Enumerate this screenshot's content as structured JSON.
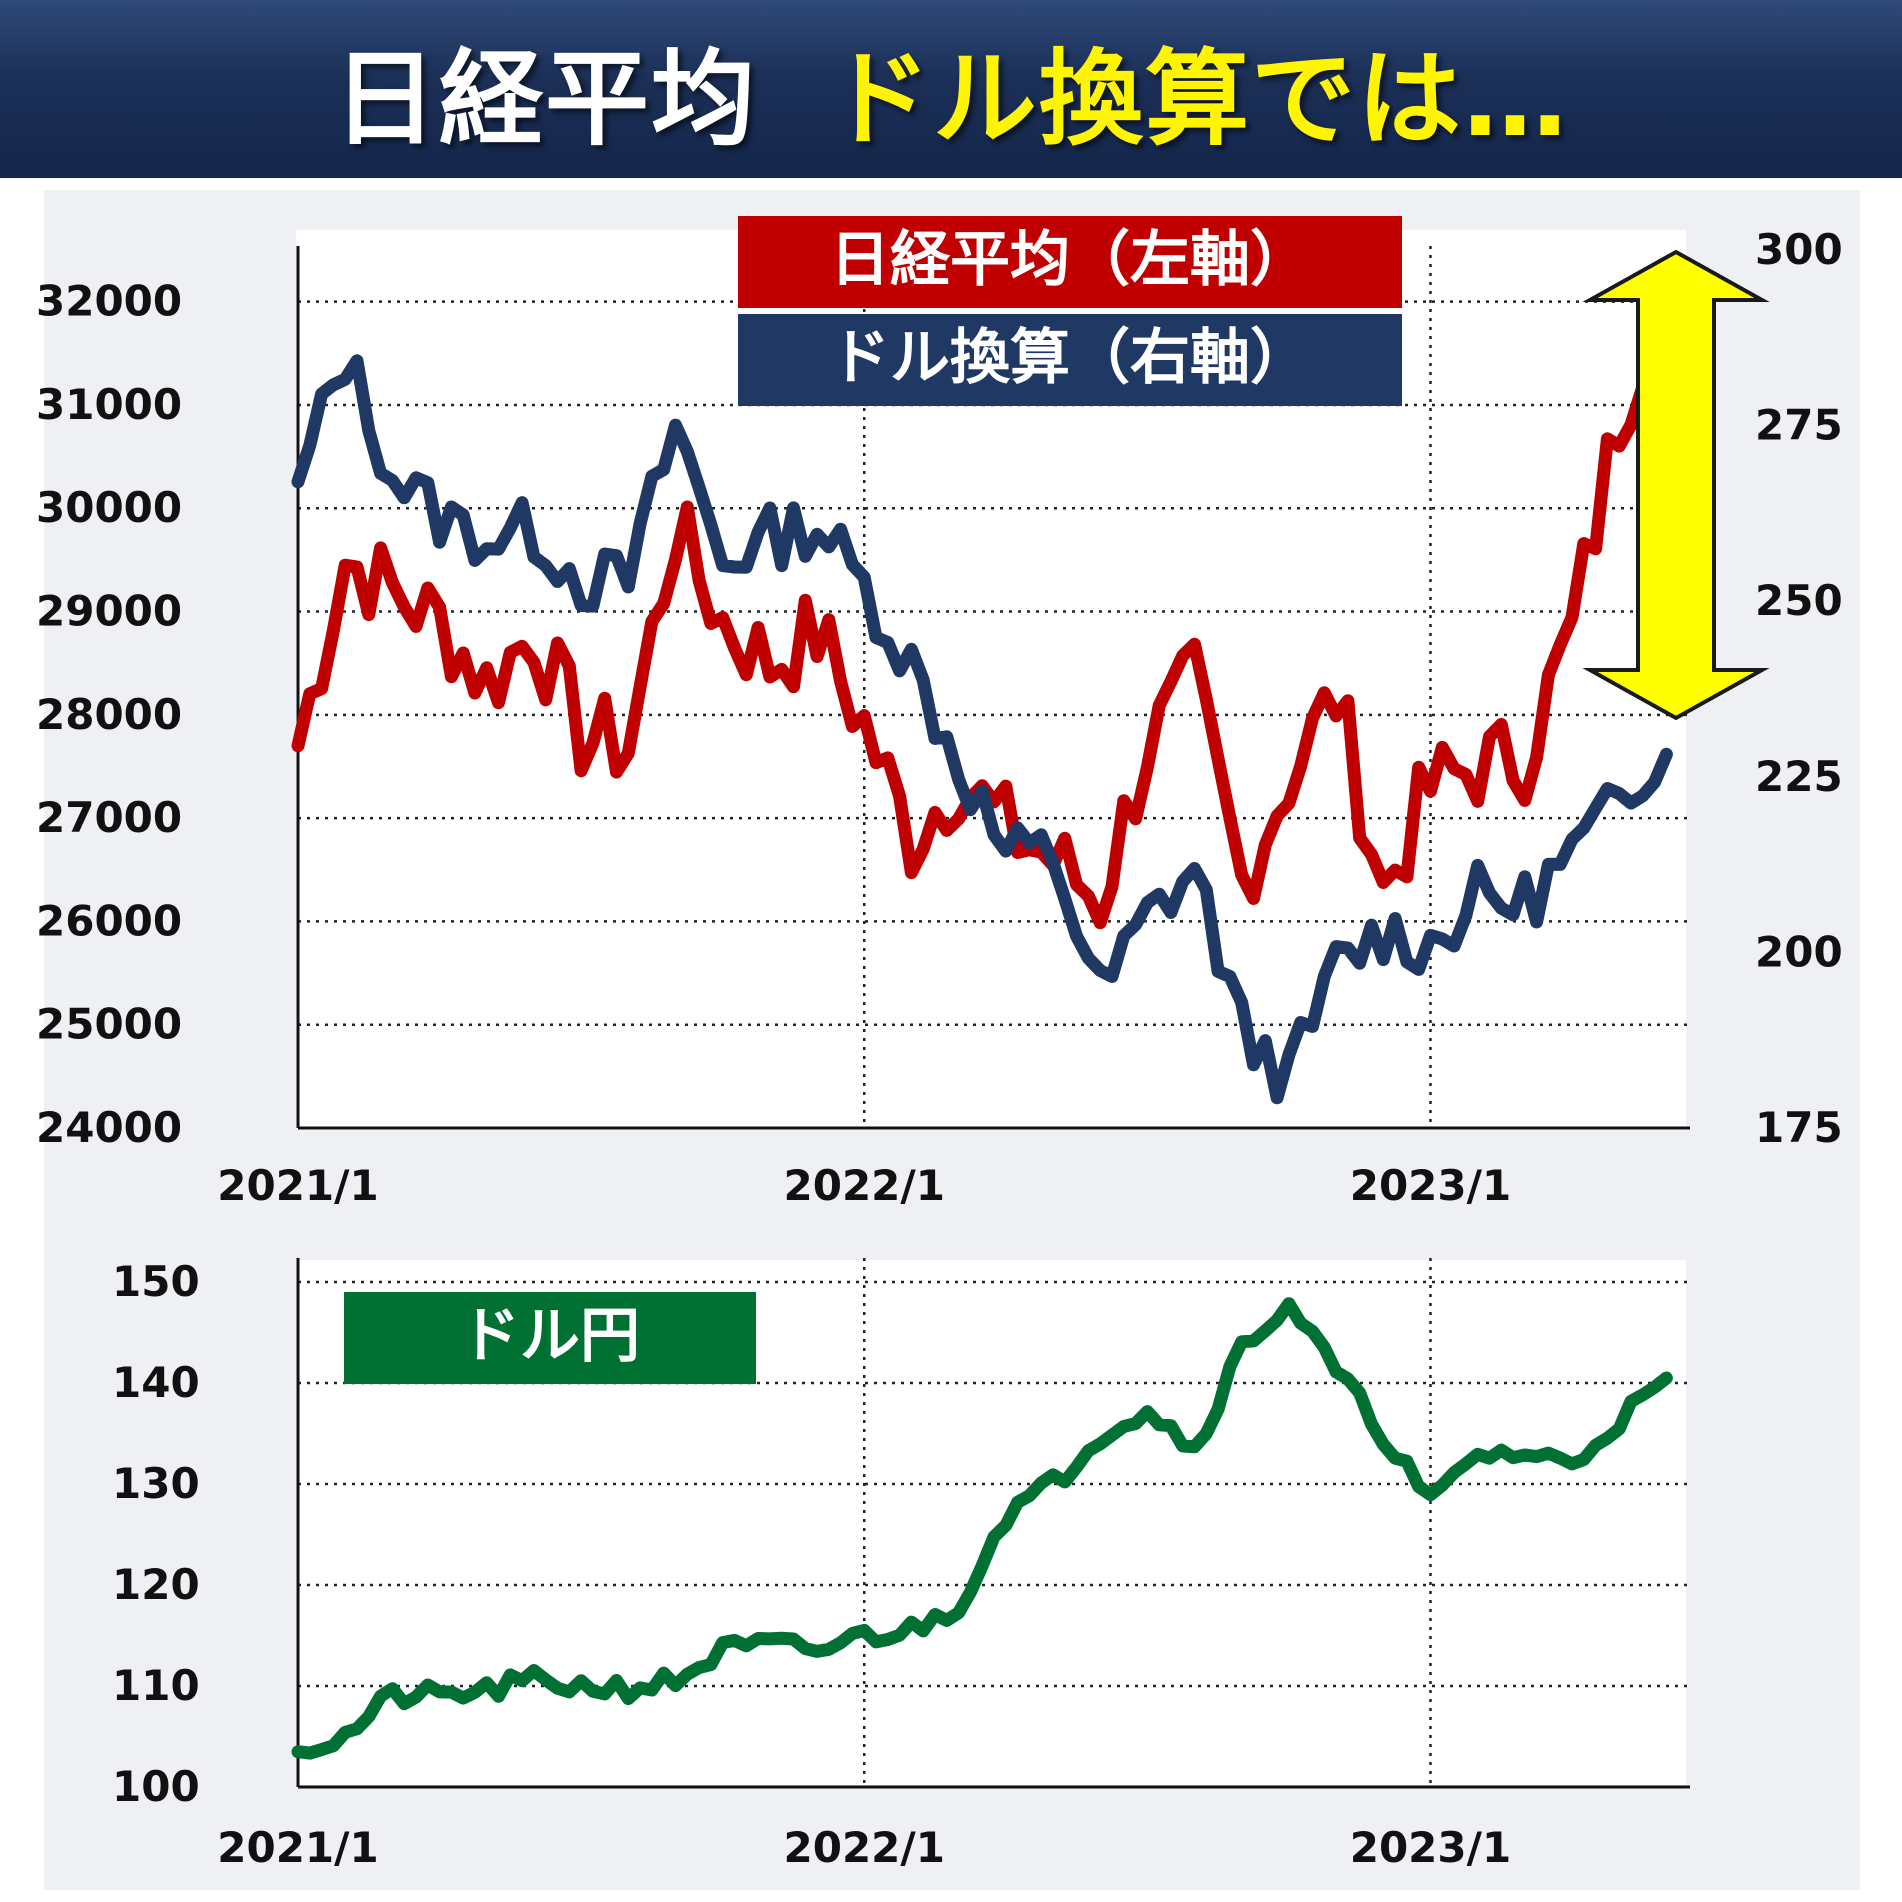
{
  "banner": {
    "title_white": "日経平均",
    "title_yellow": "ドル換算では…"
  },
  "chart_data": [
    {
      "type": "line",
      "title": "",
      "x_ticks": [
        "2021/1",
        "2022/1",
        "2023/1"
      ],
      "x_range": [
        "2021-01",
        "2023-06"
      ],
      "y_left": {
        "range": [
          24000,
          32500
        ],
        "ticks": [
          24000,
          25000,
          26000,
          27000,
          28000,
          29000,
          30000,
          31000,
          32000
        ]
      },
      "y_right": {
        "range": [
          175,
          300
        ],
        "ticks": [
          175,
          200,
          225,
          250,
          275,
          300
        ]
      },
      "grid": true,
      "annotation": "yellow double-headed arrow spanning the gap between the two series on the right",
      "series": [
        {
          "name": "日経平均",
          "legend_note": "（左軸）",
          "axis": "left",
          "color": "#c00000",
          "x": [
            "2021-01",
            "2021-02",
            "2021-03",
            "2021-04",
            "2021-05",
            "2021-06",
            "2021-07",
            "2021-08",
            "2021-09",
            "2021-10",
            "2021-11",
            "2021-12",
            "2022-01",
            "2022-02",
            "2022-03",
            "2022-04",
            "2022-05",
            "2022-06",
            "2022-07",
            "2022-08",
            "2022-09",
            "2022-10",
            "2022-11",
            "2022-12",
            "2023-01",
            "2023-02",
            "2023-03",
            "2023-04",
            "2023-05",
            "2023-06"
          ],
          "values": [
            27700,
            29500,
            29200,
            28900,
            28300,
            28800,
            27800,
            27700,
            29800,
            28900,
            28500,
            28800,
            27900,
            26800,
            27400,
            26900,
            26600,
            26200,
            27700,
            28300,
            26400,
            27400,
            28200,
            26300,
            27300,
            27500,
            27600,
            28800,
            30900,
            32200
          ]
        },
        {
          "name": "ドル換算",
          "legend_note": "（右軸）",
          "axis": "right",
          "color": "#1f3864",
          "x": [
            "2021-01",
            "2021-02",
            "2021-03",
            "2021-04",
            "2021-05",
            "2021-06",
            "2021-07",
            "2021-08",
            "2021-09",
            "2021-10",
            "2021-11",
            "2021-12",
            "2022-01",
            "2022-02",
            "2022-03",
            "2022-04",
            "2022-05",
            "2022-06",
            "2022-07",
            "2022-08",
            "2022-09",
            "2022-10",
            "2022-11",
            "2022-12",
            "2023-01",
            "2023-02",
            "2023-03",
            "2023-04",
            "2023-05",
            "2023-06"
          ],
          "values": [
            267,
            285,
            268,
            262,
            259,
            260,
            253,
            253,
            275,
            256,
            259,
            261,
            252,
            241,
            227,
            214,
            214,
            194,
            205,
            212,
            189,
            182,
            198,
            203,
            201,
            208,
            207,
            214,
            221,
            231
          ]
        }
      ]
    },
    {
      "type": "line",
      "title": "",
      "x_ticks": [
        "2021/1",
        "2022/1",
        "2023/1"
      ],
      "x_range": [
        "2021-01",
        "2023-06"
      ],
      "y_range": [
        100,
        150
      ],
      "y_ticks": [
        100,
        110,
        120,
        130,
        140,
        150
      ],
      "grid": true,
      "series": [
        {
          "name": "ドル円",
          "color": "#007033",
          "x": [
            "2021-01",
            "2021-02",
            "2021-03",
            "2021-04",
            "2021-05",
            "2021-06",
            "2021-07",
            "2021-08",
            "2021-09",
            "2021-10",
            "2021-11",
            "2021-12",
            "2022-01",
            "2022-02",
            "2022-03",
            "2022-04",
            "2022-05",
            "2022-06",
            "2022-07",
            "2022-08",
            "2022-09",
            "2022-10",
            "2022-11",
            "2022-12",
            "2023-01",
            "2023-02",
            "2023-03",
            "2023-04",
            "2023-05",
            "2023-06"
          ],
          "values": [
            103.5,
            105,
            109,
            109,
            109.5,
            110.5,
            110,
            109.8,
            110.5,
            113.5,
            114,
            113.5,
            115,
            115.5,
            118,
            127,
            130,
            135,
            137.5,
            133.5,
            143.5,
            148,
            141,
            135,
            128,
            133,
            133,
            132,
            136.5,
            140
          ]
        }
      ]
    }
  ]
}
